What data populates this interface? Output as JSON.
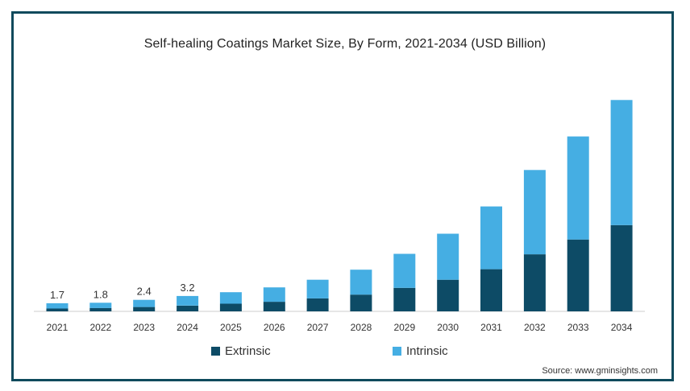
{
  "chart_data": {
    "type": "bar",
    "stacked": true,
    "title": "Self-healing Coatings Market Size, By Form, 2021-2034 (USD Billion)",
    "categories": [
      "2021",
      "2022",
      "2023",
      "2024",
      "2025",
      "2026",
      "2027",
      "2028",
      "2029",
      "2030",
      "2031",
      "2032",
      "2033",
      "2034"
    ],
    "series": [
      {
        "name": "Extrinsic",
        "color": "#0d4b66",
        "values": [
          0.6,
          0.7,
          0.9,
          1.2,
          1.6,
          2.0,
          2.7,
          3.5,
          4.9,
          6.6,
          8.8,
          11.9,
          15.0,
          18.0
        ]
      },
      {
        "name": "Intrinsic",
        "color": "#45aee3",
        "values": [
          1.1,
          1.1,
          1.5,
          2.0,
          2.4,
          3.0,
          3.9,
          5.2,
          7.1,
          9.6,
          13.1,
          17.6,
          21.5,
          26.1
        ]
      }
    ],
    "data_labels": [
      "1.7",
      "1.8",
      "2.4",
      "3.2",
      "",
      "",
      "",
      "",
      "",
      "",
      "",
      "",
      "",
      ""
    ],
    "ylim": [
      0,
      46
    ],
    "yaxis_visible": false,
    "grid": false,
    "legend_position": "bottom"
  },
  "legend": [
    "Extrinsic",
    "Intrinsic"
  ],
  "source": "Source: www.gminsights.com",
  "colors": {
    "frame": "#0f4a5c",
    "extrinsic": "#0d4b66",
    "intrinsic": "#45aee3"
  }
}
